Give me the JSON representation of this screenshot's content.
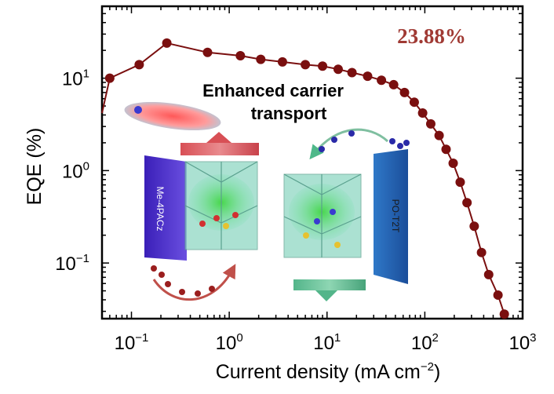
{
  "chart_data": {
    "type": "line",
    "xscale": "log",
    "yscale": "log",
    "xlim": [
      0.05,
      1000
    ],
    "ylim": [
      0.025,
      60
    ],
    "xlabel": "Current density (mA cm",
    "xlabel_sup": "−2",
    "xlabel_end": ")",
    "ylabel": "EQE (%)",
    "xticks": [
      {
        "value": 0.1,
        "base": "10",
        "exp": "−1"
      },
      {
        "value": 1,
        "base": "10",
        "exp": "0"
      },
      {
        "value": 10,
        "base": "10",
        "exp": "1"
      },
      {
        "value": 100,
        "base": "10",
        "exp": "2"
      },
      {
        "value": 1000,
        "base": "10",
        "exp": "3"
      }
    ],
    "yticks": [
      {
        "value": 0.1,
        "base": "10",
        "exp": "−1"
      },
      {
        "value": 1,
        "base": "10",
        "exp": "0"
      },
      {
        "value": 10,
        "base": "10",
        "exp": "1"
      }
    ],
    "series": [
      {
        "color": "#7a0f0f",
        "x": [
          0.05,
          0.06,
          0.12,
          0.23,
          0.6,
          1.3,
          2.1,
          3.5,
          6,
          9,
          13,
          18,
          26,
          36,
          48,
          62,
          78,
          95,
          115,
          140,
          165,
          195,
          230,
          270,
          320,
          380,
          450,
          560,
          650
        ],
        "y": [
          4.2,
          10,
          14,
          24,
          19,
          17.5,
          16,
          15,
          14,
          13.5,
          12.5,
          11.5,
          10.5,
          9.5,
          8.5,
          7,
          5.5,
          4.2,
          3.2,
          2.4,
          1.7,
          1.2,
          0.75,
          0.45,
          0.25,
          0.13,
          0.075,
          0.045,
          0.028
        ]
      }
    ],
    "annotation": "23.88%",
    "annotation_color": "#a03a34"
  },
  "inset": {
    "heading_line1": "Enhanced carrier",
    "heading_line2": "transport",
    "heading_color": "#b9504a",
    "left_slab_label": "Me-4PACz",
    "right_slab_label": "PO-T2T"
  }
}
